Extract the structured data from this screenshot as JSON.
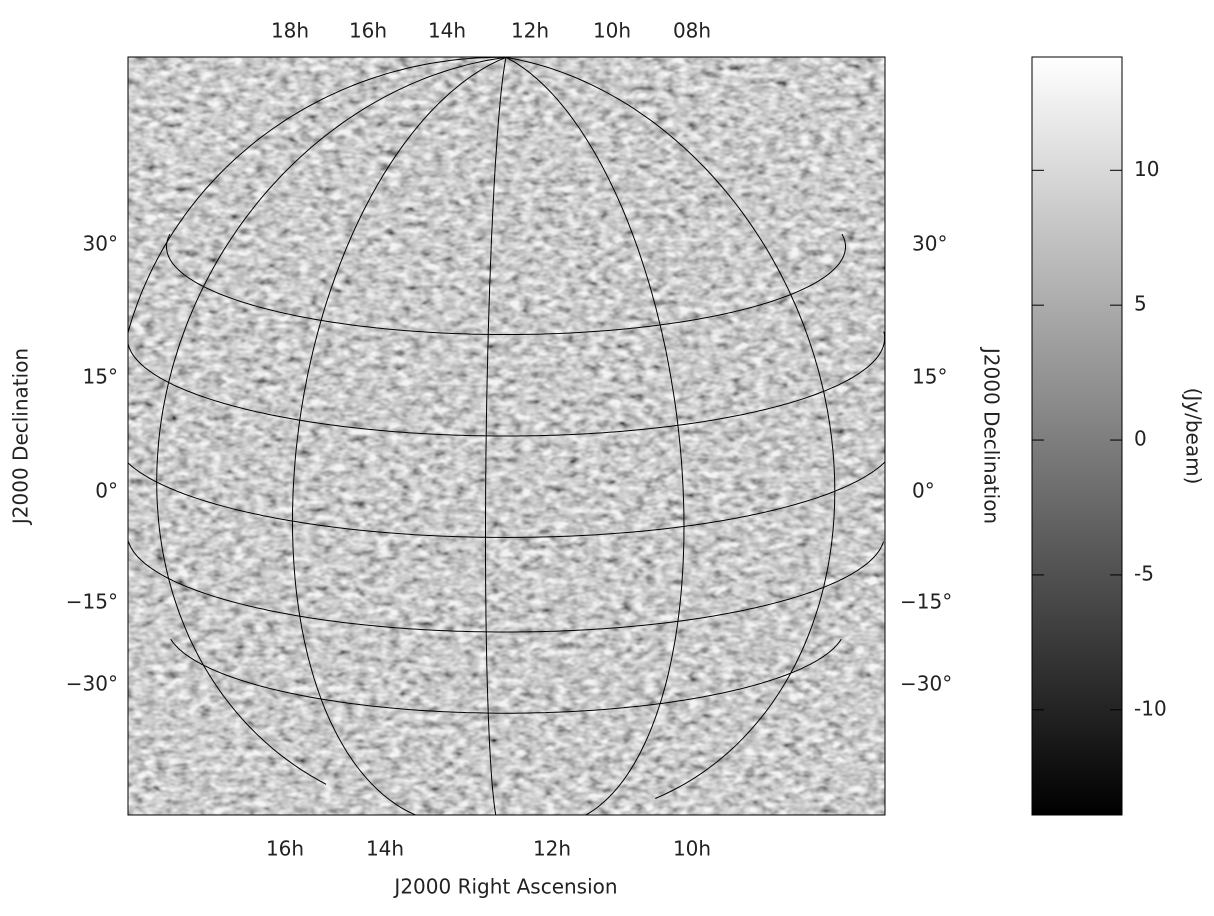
{
  "chart_data": {
    "type": "image",
    "xlabel": "J2000 Right Ascension",
    "ylabel": "J2000 Declination",
    "ra_ticks_top": [
      {
        "value": 18,
        "label": "18h"
      },
      {
        "value": 16,
        "label": "16h"
      },
      {
        "value": 14,
        "label": "14h"
      },
      {
        "value": 12,
        "label": "12h"
      },
      {
        "value": 10,
        "label": "10h"
      },
      {
        "value": 8,
        "label": "08h"
      }
    ],
    "ra_ticks_bottom": [
      {
        "value": 16,
        "label": "16h"
      },
      {
        "value": 14,
        "label": "14h"
      },
      {
        "value": 12,
        "label": "12h"
      },
      {
        "value": 10,
        "label": "10h"
      }
    ],
    "dec_ticks": [
      {
        "value": 30,
        "label": "30°"
      },
      {
        "value": 15,
        "label": "15°"
      },
      {
        "value": 0,
        "label": "0°"
      },
      {
        "value": -15,
        "label": "−15°"
      },
      {
        "value": -30,
        "label": "−30°"
      }
    ],
    "colorbar": {
      "label": "(Jy/beam)",
      "lim": [
        -13.9,
        14.2
      ],
      "ticks": [
        -10,
        -5,
        0,
        5,
        10
      ]
    }
  }
}
